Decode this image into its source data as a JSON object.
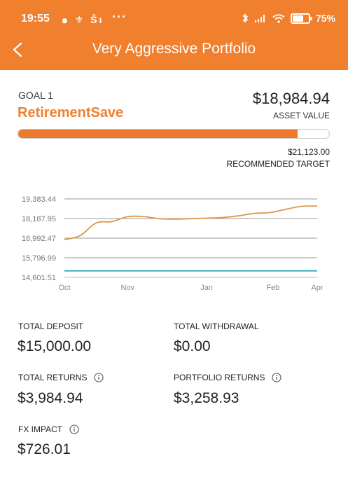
{
  "status_bar": {
    "time": "19:55",
    "left_icons": "๑ ⚜ Ŝı",
    "more": "···",
    "battery": "75%",
    "battery_level": 0.75
  },
  "header": {
    "title": "Very Aggressive Portfolio",
    "back_icon": "chevron-left-icon",
    "background_color": "#f07f2e"
  },
  "goal": {
    "label": "GOAL 1",
    "name": "RetirementSave",
    "asset_value": "$18,984.94",
    "asset_value_label": "ASSET VALUE",
    "progress_fraction": 0.898,
    "recommended_target": "$21,123.00",
    "recommended_target_label": "RECOMMENDED TARGET"
  },
  "chart_data": {
    "type": "line",
    "y_tick_labels": [
      "19,383.44",
      "18,187.95",
      "16,992.47",
      "15,796.99",
      "14,601.51"
    ],
    "x_tick_labels": [
      "Oct",
      "Nov",
      "Jan",
      "Feb",
      "Apr"
    ],
    "ylim": [
      14601.51,
      19383.44
    ],
    "x": [
      0,
      0.5,
      1,
      1.5,
      2,
      2.5,
      3,
      3.5,
      4,
      4.5,
      5,
      5.5,
      6,
      6.5,
      7,
      7.5,
      8
    ],
    "series": [
      {
        "color": "#e0964a",
        "values": [
          16900,
          17150,
          17920,
          18000,
          18300,
          18310,
          18180,
          18150,
          18180,
          18210,
          18250,
          18350,
          18500,
          18550,
          18750,
          18930,
          18950
        ]
      },
      {
        "color": "#2aa8b8",
        "values": [
          15000,
          15000,
          15000,
          15000,
          15000,
          15000,
          15000,
          15000,
          15000,
          15000,
          15000,
          15000,
          15000,
          15000,
          15000,
          15000,
          15000
        ]
      }
    ],
    "grid": true
  },
  "stats": {
    "total_deposit_label": "TOTAL DEPOSIT",
    "total_deposit_value": "$15,000.00",
    "total_withdrawal_label": "TOTAL WITHDRAWAL",
    "total_withdrawal_value": "$0.00",
    "total_returns_label": "TOTAL RETURNS",
    "total_returns_value": "$3,984.94",
    "portfolio_returns_label": "PORTFOLIO RETURNS",
    "portfolio_returns_value": "$3,258.93",
    "fx_impact_label": "FX IMPACT",
    "fx_impact_value": "$726.01",
    "info_icon": "info-icon"
  }
}
